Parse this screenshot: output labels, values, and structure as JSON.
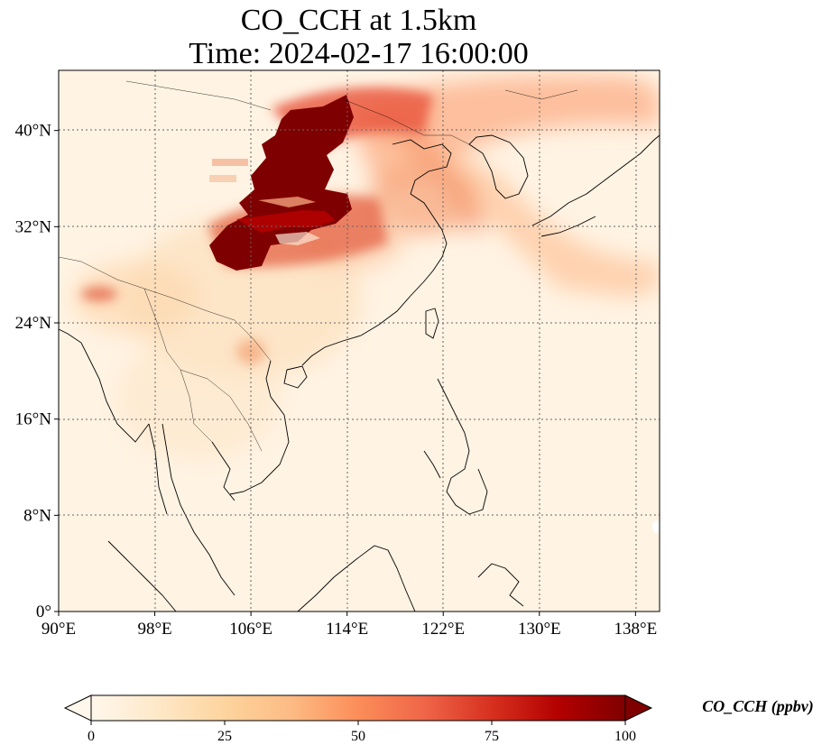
{
  "title": {
    "line1": "CO_CCH at 1.5km",
    "line2": "Time: 2024-02-17 16:00:00"
  },
  "map": {
    "projection": "PlateCarree",
    "lon_range": [
      90,
      140
    ],
    "lat_range": [
      0,
      45
    ],
    "gridlines": "dotted",
    "x_ticks": [
      "90°E",
      "98°E",
      "106°E",
      "114°E",
      "122°E",
      "130°E",
      "138°E"
    ],
    "y_ticks": [
      "0°",
      "8°N",
      "16°N",
      "24°N",
      "32°N",
      "40°N"
    ],
    "x_tick_values": [
      90,
      98,
      106,
      114,
      122,
      130,
      138
    ],
    "y_tick_values": [
      0,
      8,
      16,
      24,
      32,
      40
    ]
  },
  "colorbar": {
    "label": "CO_CCH (ppbv)",
    "colormap": "OrRd",
    "range": [
      0,
      100
    ],
    "extend": "both",
    "ticks": [
      "0",
      "25",
      "50",
      "75",
      "100"
    ],
    "tick_values": [
      0,
      25,
      50,
      75,
      100
    ],
    "colors": [
      "#fff7ec",
      "#fee8c8",
      "#fdd49e",
      "#fdbb84",
      "#fc8d59",
      "#ef6548",
      "#d7301f",
      "#b30000",
      "#7f0000"
    ]
  }
}
